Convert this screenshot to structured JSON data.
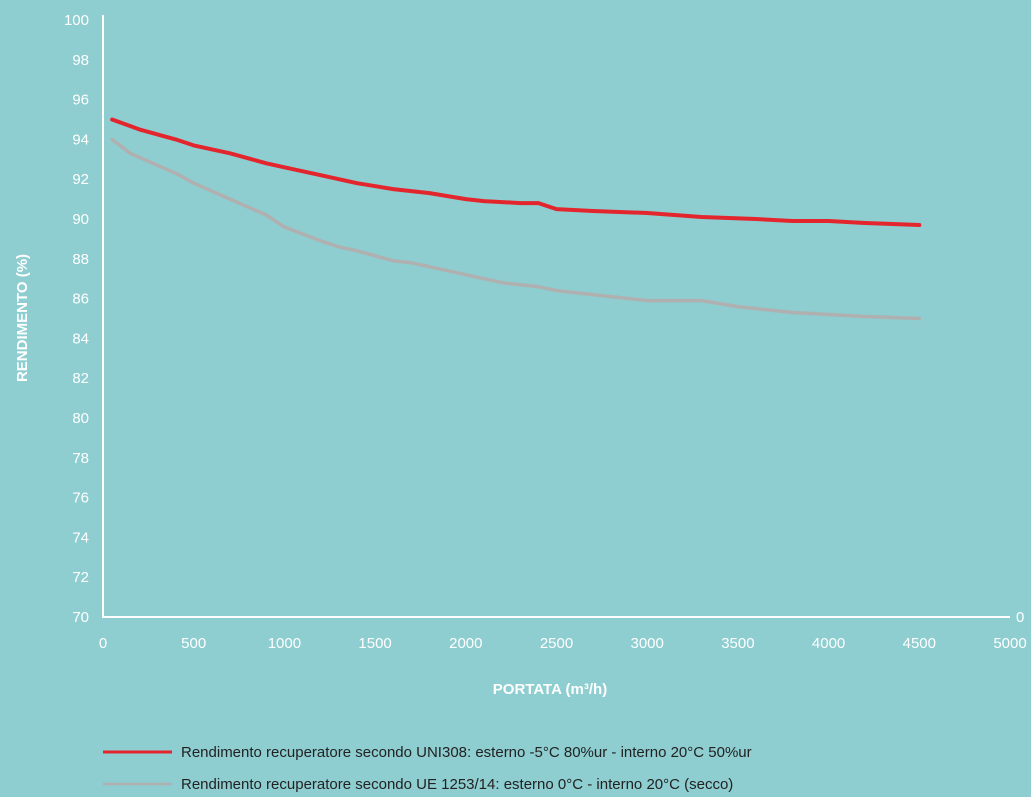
{
  "chart_data": {
    "type": "line",
    "xlabel": "PORTATA (m³/h)",
    "ylabel": "RENDIMENTO (%)",
    "xlim": [
      0,
      5000
    ],
    "ylim": [
      70,
      100
    ],
    "xticks": [
      "0",
      "500",
      "1000",
      "1500",
      "2000",
      "2500",
      "3000",
      "3500",
      "4000",
      "4500",
      "5000"
    ],
    "yticks": [
      "70",
      "72",
      "74",
      "76",
      "78",
      "80",
      "82",
      "84",
      "86",
      "88",
      "90",
      "92",
      "94",
      "96",
      "98",
      "100"
    ],
    "x_axis_end_label": "0",
    "grid": false,
    "legend_position": "bottom",
    "series": [
      {
        "name": "Rendimento recuperatore secondo UNI308: esterno -5°C 80%ur - interno 20°C 50%ur",
        "color": "#e3262d",
        "x": [
          50,
          200,
          400,
          500,
          700,
          900,
          1000,
          1200,
          1400,
          1600,
          1800,
          2000,
          2100,
          2300,
          2400,
          2500,
          2700,
          3000,
          3300,
          3600,
          3800,
          4000,
          4200,
          4500
        ],
        "y": [
          95,
          94.5,
          94,
          93.7,
          93.3,
          92.8,
          92.6,
          92.2,
          91.8,
          91.5,
          91.3,
          91.0,
          90.9,
          90.8,
          90.8,
          90.5,
          90.4,
          90.3,
          90.1,
          90.0,
          89.9,
          89.9,
          89.8,
          89.7
        ]
      },
      {
        "name": "Rendimento recuperatore secondo UE 1253/14: esterno 0°C - interno 20°C (secco)",
        "color": "#b0b0b0",
        "x": [
          50,
          150,
          200,
          300,
          400,
          500,
          700,
          900,
          1000,
          1200,
          1300,
          1400,
          1600,
          1700,
          1900,
          2100,
          2200,
          2400,
          2500,
          2700,
          3000,
          3300,
          3500,
          3800,
          4000,
          4200,
          4500
        ],
        "y": [
          94,
          93.3,
          93.1,
          92.7,
          92.3,
          91.8,
          91.0,
          90.2,
          89.6,
          88.9,
          88.6,
          88.4,
          87.9,
          87.8,
          87.4,
          87.0,
          86.8,
          86.6,
          86.4,
          86.2,
          85.9,
          85.9,
          85.6,
          85.3,
          85.2,
          85.1,
          85.0
        ]
      }
    ]
  }
}
